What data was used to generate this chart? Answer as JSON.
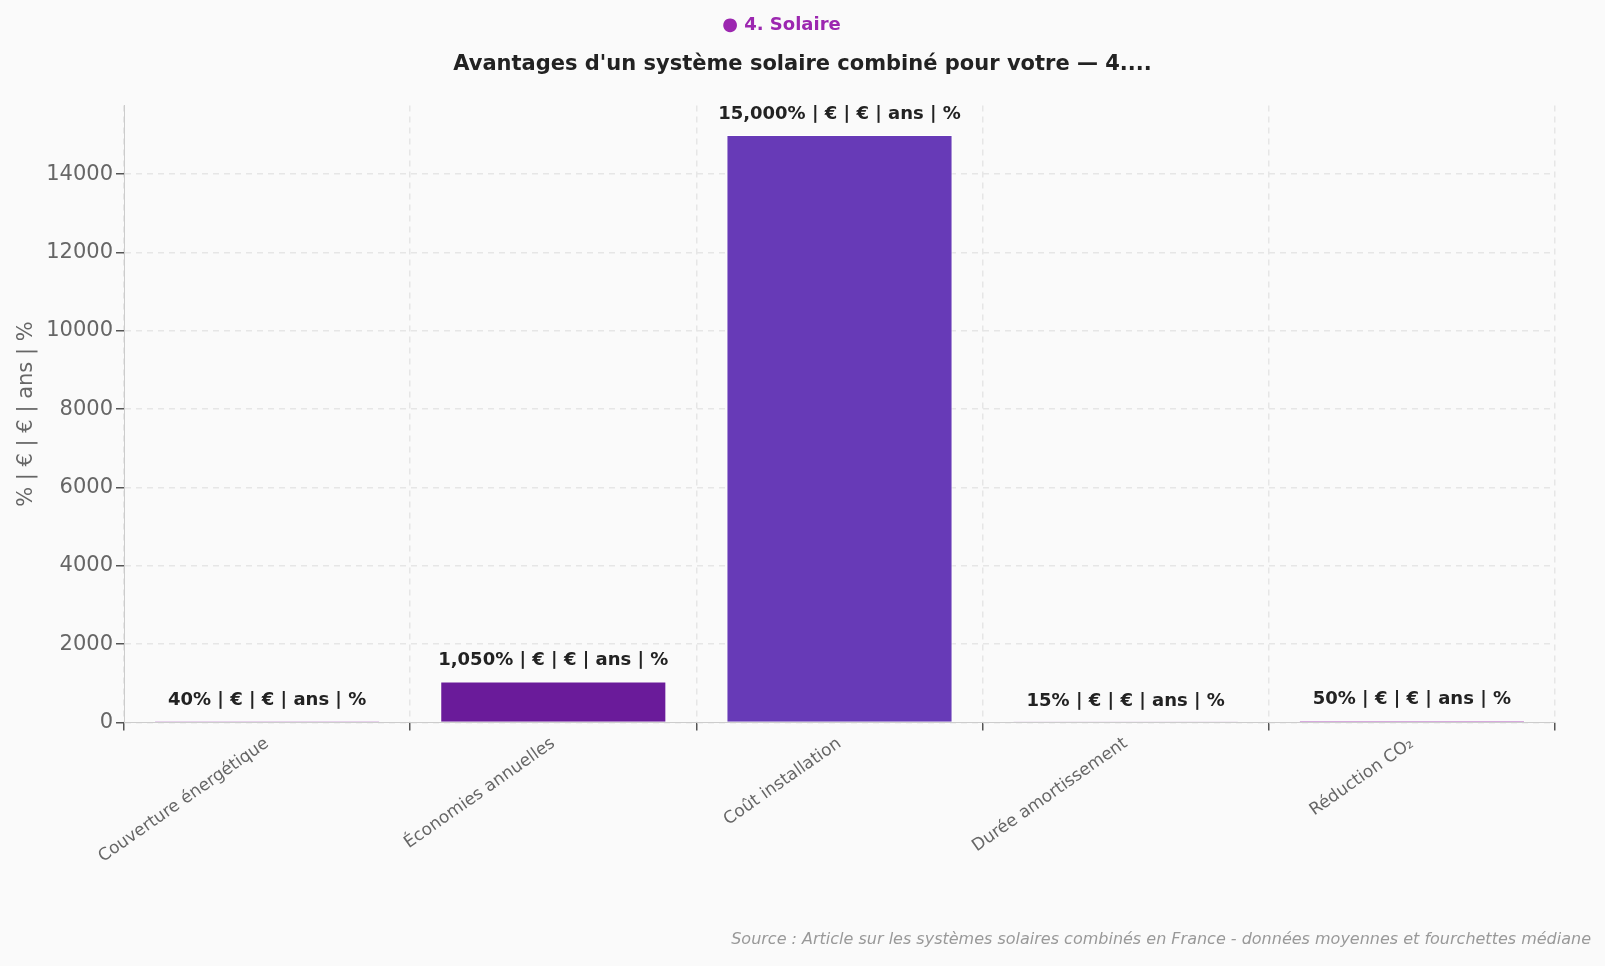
{
  "chart_data": {
    "type": "bar",
    "subtitle": "● 4. Solaire",
    "title": "Avantages d'un système solaire combiné pour votre  — 4....",
    "ylabel": "% | € | € | ans | %",
    "categories": [
      "Couverture énergétique",
      "Économies annuelles",
      "Coût installation",
      "Durée amortissement",
      "Réduction CO₂"
    ],
    "values": [
      40,
      1050,
      15000,
      15,
      50
    ],
    "colors": [
      "#8e24aa",
      "#6a1b9a",
      "#673ab7",
      "#7b1fa2",
      "#9c27b0"
    ],
    "value_labels": [
      "40% | € | € | ans | %",
      "1,050% | € | € | ans | %",
      "15,000% | € | € | ans | %",
      "15% | € | € | ans | %",
      "50% | € | € | ans | %"
    ],
    "ylim": [
      0,
      15750
    ],
    "yticks": [
      0,
      2000,
      4000,
      6000,
      8000,
      10000,
      12000,
      14000
    ],
    "grid": true,
    "legend": false,
    "annotations": [
      "Source : Article sur les systèmes solaires combinés en France - données moyennes et fourchettes médiane"
    ]
  }
}
